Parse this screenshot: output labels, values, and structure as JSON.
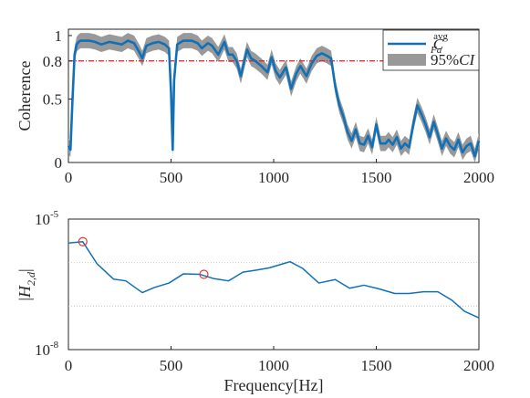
{
  "chart_data": [
    {
      "type": "line",
      "ylabel": "Coherence",
      "xlim": [
        0,
        2000
      ],
      "ylim": [
        0,
        1.05
      ],
      "xticks": [
        "0",
        "500",
        "1000",
        "1500",
        "2000"
      ],
      "yticks": [
        "0",
        "0.5",
        "0.8",
        "1"
      ],
      "threshold": 0.8,
      "legend": {
        "placement": "top-right",
        "entries": [
          "C^avg_Fa",
          "95%CI"
        ]
      },
      "legend_main": {
        "series": "C",
        "sup": "avg",
        "sub": "Fa"
      },
      "legend_ci": {
        "prefix": "95%",
        "italic": "CI"
      },
      "ci_halfwidth": 0.06,
      "series": [
        {
          "name": "C^avg_Fa",
          "x": [
            0,
            10,
            20,
            30,
            40,
            50,
            60,
            75,
            100,
            130,
            160,
            200,
            230,
            260,
            290,
            320,
            345,
            360,
            380,
            410,
            440,
            470,
            490,
            500,
            508,
            515,
            530,
            560,
            600,
            630,
            650,
            680,
            700,
            730,
            760,
            780,
            800,
            820,
            840,
            870,
            890,
            910,
            940,
            970,
            990,
            1010,
            1030,
            1060,
            1085,
            1110,
            1130,
            1160,
            1185,
            1210,
            1235,
            1260,
            1280,
            1300,
            1320,
            1340,
            1360,
            1380,
            1400,
            1420,
            1440,
            1460,
            1480,
            1500,
            1520,
            1545,
            1560,
            1580,
            1600,
            1620,
            1640,
            1660,
            1680,
            1700,
            1720,
            1740,
            1760,
            1780,
            1800,
            1820,
            1840,
            1860,
            1880,
            1900,
            1920,
            1940,
            1960,
            1980,
            2000
          ],
          "y": [
            0.13,
            0.1,
            0.5,
            0.85,
            0.93,
            0.95,
            0.96,
            0.96,
            0.96,
            0.95,
            0.93,
            0.95,
            0.94,
            0.93,
            0.96,
            0.94,
            0.87,
            0.82,
            0.92,
            0.94,
            0.95,
            0.93,
            0.9,
            0.55,
            0.1,
            0.65,
            0.93,
            0.96,
            0.96,
            0.94,
            0.9,
            0.94,
            0.92,
            0.85,
            0.95,
            0.85,
            0.85,
            0.8,
            0.68,
            0.89,
            0.82,
            0.8,
            0.76,
            0.71,
            0.83,
            0.72,
            0.67,
            0.75,
            0.58,
            0.7,
            0.76,
            0.68,
            0.78,
            0.84,
            0.86,
            0.84,
            0.82,
            0.6,
            0.45,
            0.36,
            0.24,
            0.17,
            0.26,
            0.15,
            0.14,
            0.21,
            0.12,
            0.3,
            0.15,
            0.15,
            0.18,
            0.14,
            0.2,
            0.11,
            0.15,
            0.12,
            0.3,
            0.45,
            0.38,
            0.3,
            0.2,
            0.32,
            0.22,
            0.11,
            0.19,
            0.13,
            0.1,
            0.18,
            0.08,
            0.13,
            0.15,
            0.05,
            0.17
          ]
        }
      ]
    },
    {
      "type": "line",
      "xlabel": "Frequency[Hz]",
      "ylabel": "|H_2,d|",
      "xlim": [
        0,
        2000
      ],
      "log_exp_range": [
        -8,
        -5
      ],
      "yticks_base": "10",
      "yticks_exp": [
        "-5",
        "-8"
      ],
      "xticks": [
        "0",
        "500",
        "1000",
        "1500",
        "2000"
      ],
      "ylabel_prefix": "|",
      "ylabel_main": "H",
      "ylabel_sub": "2,d",
      "ylabel_suffix": "|",
      "series": [
        {
          "x": [
            0,
            70,
            140,
            220,
            280,
            360,
            420,
            490,
            560,
            640,
            710,
            780,
            850,
            920,
            980,
            1050,
            1080,
            1140,
            1220,
            1300,
            1370,
            1440,
            1510,
            1590,
            1660,
            1730,
            1800,
            1870,
            1930,
            2000
          ],
          "y_exp": [
            -5.55,
            -5.52,
            -6.03,
            -6.38,
            -6.42,
            -6.69,
            -6.57,
            -6.47,
            -6.26,
            -6.27,
            -6.37,
            -6.42,
            -6.22,
            -6.17,
            -6.12,
            -6.02,
            -5.98,
            -6.13,
            -6.47,
            -6.39,
            -6.59,
            -6.52,
            -6.6,
            -6.71,
            -6.71,
            -6.67,
            -6.67,
            -6.87,
            -7.12,
            -7.27
          ]
        }
      ],
      "markers": [
        {
          "x": 70,
          "y_exp": -5.52
        },
        {
          "x": 660,
          "y_exp": -6.27
        }
      ]
    }
  ],
  "colors": {
    "line": "#1071b8",
    "band": "#999999",
    "threshold": "#e31a1c",
    "marker": "#e03c31",
    "grid": "#bdbdbd",
    "axis": "#262626"
  }
}
